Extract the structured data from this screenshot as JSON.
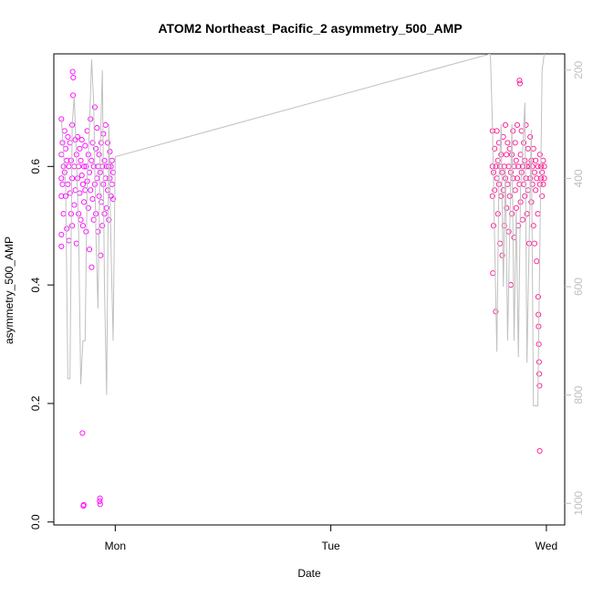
{
  "chart_data": {
    "type": "scatter",
    "title": "ATOM2 Northeast_Pacific_2 asymmetry_500_AMP",
    "xlabel": "Date",
    "ylabel": "asymmetry_500_AMP",
    "x_tick_labels": [
      "Mon",
      "Tue",
      "Wed"
    ],
    "x_tick_positions_days": [
      0,
      1,
      2
    ],
    "xlim_days": [
      -0.285,
      2.085
    ],
    "ylim": [
      -0.005,
      0.79
    ],
    "y_ticks": [
      0.0,
      0.2,
      0.4,
      0.6
    ],
    "y_tick_labels": [
      "0.0",
      "0.2",
      "0.4",
      "0.6"
    ],
    "y2_label": "",
    "y2_ticks": [
      200,
      400,
      600,
      800,
      1000
    ],
    "y2_tick_labels": [
      "200",
      "400",
      "600",
      "800",
      "1000"
    ],
    "y2lim_reversed": [
      1040,
      170
    ],
    "grid": false,
    "legend": "none",
    "series": [
      {
        "kind": "points",
        "color": "#ff00ff",
        "points": [
          [
            -0.25,
            0.58
          ],
          [
            -0.25,
            0.62
          ],
          [
            -0.25,
            0.55
          ],
          [
            -0.25,
            0.68
          ],
          [
            -0.25,
            0.465
          ],
          [
            -0.25,
            0.485
          ],
          [
            -0.245,
            0.64
          ],
          [
            -0.245,
            0.57
          ],
          [
            -0.24,
            0.6
          ],
          [
            -0.24,
            0.52
          ],
          [
            -0.235,
            0.66
          ],
          [
            -0.235,
            0.59
          ],
          [
            -0.23,
            0.63
          ],
          [
            -0.23,
            0.55
          ],
          [
            -0.225,
            0.61
          ],
          [
            -0.225,
            0.495
          ],
          [
            -0.22,
            0.57
          ],
          [
            -0.22,
            0.65
          ],
          [
            -0.215,
            0.6
          ],
          [
            -0.215,
            0.475
          ],
          [
            -0.21,
            0.555
          ],
          [
            -0.21,
            0.64
          ],
          [
            -0.205,
            0.52
          ],
          [
            -0.205,
            0.61
          ],
          [
            -0.2,
            0.67
          ],
          [
            -0.2,
            0.58
          ],
          [
            -0.2,
            0.5
          ],
          [
            -0.198,
            0.76
          ],
          [
            -0.196,
            0.72
          ],
          [
            -0.195,
            0.75
          ],
          [
            -0.19,
            0.6
          ],
          [
            -0.19,
            0.535
          ],
          [
            -0.185,
            0.645
          ],
          [
            -0.185,
            0.56
          ],
          [
            -0.18,
            0.62
          ],
          [
            -0.18,
            0.47
          ],
          [
            -0.175,
            0.58
          ],
          [
            -0.175,
            0.65
          ],
          [
            -0.17,
            0.6
          ],
          [
            -0.17,
            0.52
          ],
          [
            -0.165,
            0.555
          ],
          [
            -0.165,
            0.63
          ],
          [
            -0.16,
            0.61
          ],
          [
            -0.16,
            0.51
          ],
          [
            -0.155,
            0.585
          ],
          [
            -0.155,
            0.645
          ],
          [
            -0.152,
            0.15
          ],
          [
            -0.15,
            0.57
          ],
          [
            -0.15,
            0.5
          ],
          [
            -0.148,
            0.027
          ],
          [
            -0.146,
            0.029
          ],
          [
            -0.145,
            0.6
          ],
          [
            -0.145,
            0.54
          ],
          [
            -0.14,
            0.635
          ],
          [
            -0.14,
            0.56
          ],
          [
            -0.135,
            0.6
          ],
          [
            -0.135,
            0.49
          ],
          [
            -0.13,
            0.66
          ],
          [
            -0.13,
            0.575
          ],
          [
            -0.125,
            0.62
          ],
          [
            -0.125,
            0.53
          ],
          [
            -0.12,
            0.59
          ],
          [
            -0.12,
            0.46
          ],
          [
            -0.115,
            0.68
          ],
          [
            -0.115,
            0.56
          ],
          [
            -0.11,
            0.61
          ],
          [
            -0.11,
            0.43
          ],
          [
            -0.105,
            0.545
          ],
          [
            -0.105,
            0.64
          ],
          [
            -0.1,
            0.6
          ],
          [
            -0.1,
            0.51
          ],
          [
            -0.095,
            0.7
          ],
          [
            -0.095,
            0.57
          ],
          [
            -0.09,
            0.63
          ],
          [
            -0.09,
            0.52
          ],
          [
            -0.085,
            0.58
          ],
          [
            -0.085,
            0.665
          ],
          [
            -0.08,
            0.6
          ],
          [
            -0.08,
            0.49
          ],
          [
            -0.075,
            0.55
          ],
          [
            -0.075,
            0.62
          ],
          [
            -0.072,
            0.035
          ],
          [
            -0.071,
            0.04
          ],
          [
            -0.07,
            0.03
          ],
          [
            -0.07,
            0.59
          ],
          [
            -0.068,
            0.45
          ],
          [
            -0.065,
            0.64
          ],
          [
            -0.065,
            0.54
          ],
          [
            -0.06,
            0.6
          ],
          [
            -0.06,
            0.5
          ],
          [
            -0.055,
            0.57
          ],
          [
            -0.055,
            0.655
          ],
          [
            -0.05,
            0.61
          ],
          [
            -0.05,
            0.52
          ],
          [
            -0.045,
            0.58
          ],
          [
            -0.045,
            0.67
          ],
          [
            -0.04,
            0.6
          ],
          [
            -0.04,
            0.53
          ],
          [
            -0.035,
            0.56
          ],
          [
            -0.035,
            0.64
          ],
          [
            -0.03,
            0.6
          ],
          [
            -0.03,
            0.51
          ],
          [
            -0.025,
            0.58
          ],
          [
            -0.025,
            0.625
          ],
          [
            -0.02,
            0.55
          ],
          [
            -0.02,
            0.6
          ],
          [
            -0.015,
            0.57
          ],
          [
            -0.015,
            0.61
          ],
          [
            -0.01,
            0.59
          ],
          [
            -0.01,
            0.545
          ]
        ]
      },
      {
        "kind": "points",
        "color": "#ff1493",
        "points": [
          [
            1.75,
            0.6
          ],
          [
            1.75,
            0.55
          ],
          [
            1.75,
            0.66
          ],
          [
            1.752,
            0.42
          ],
          [
            1.755,
            0.59
          ],
          [
            1.755,
            0.5
          ],
          [
            1.76,
            0.63
          ],
          [
            1.76,
            0.56
          ],
          [
            1.765,
            0.6
          ],
          [
            1.765,
            0.355
          ],
          [
            1.77,
            0.58
          ],
          [
            1.77,
            0.66
          ],
          [
            1.775,
            0.61
          ],
          [
            1.775,
            0.52
          ],
          [
            1.78,
            0.57
          ],
          [
            1.78,
            0.64
          ],
          [
            1.785,
            0.6
          ],
          [
            1.785,
            0.47
          ],
          [
            1.79,
            0.55
          ],
          [
            1.79,
            0.62
          ],
          [
            1.795,
            0.59
          ],
          [
            1.795,
            0.45
          ],
          [
            1.8,
            0.65
          ],
          [
            1.8,
            0.56
          ],
          [
            1.805,
            0.6
          ],
          [
            1.805,
            0.5
          ],
          [
            1.81,
            0.58
          ],
          [
            1.81,
            0.67
          ],
          [
            1.815,
            0.62
          ],
          [
            1.815,
            0.53
          ],
          [
            1.82,
            0.57
          ],
          [
            1.82,
            0.64
          ],
          [
            1.825,
            0.6
          ],
          [
            1.825,
            0.49
          ],
          [
            1.83,
            0.55
          ],
          [
            1.83,
            0.63
          ],
          [
            1.835,
            0.59
          ],
          [
            1.835,
            0.4
          ],
          [
            1.84,
            0.62
          ],
          [
            1.84,
            0.52
          ],
          [
            1.845,
            0.58
          ],
          [
            1.845,
            0.66
          ],
          [
            1.85,
            0.6
          ],
          [
            1.85,
            0.48
          ],
          [
            1.855,
            0.56
          ],
          [
            1.855,
            0.64
          ],
          [
            1.86,
            0.61
          ],
          [
            1.86,
            0.53
          ],
          [
            1.865,
            0.58
          ],
          [
            1.865,
            0.67
          ],
          [
            1.87,
            0.6
          ],
          [
            1.87,
            0.5
          ],
          [
            1.875,
            0.57
          ],
          [
            1.875,
            0.745
          ],
          [
            1.877,
            0.74
          ],
          [
            1.88,
            0.62
          ],
          [
            1.88,
            0.54
          ],
          [
            1.885,
            0.59
          ],
          [
            1.885,
            0.66
          ],
          [
            1.89,
            0.6
          ],
          [
            1.89,
            0.51
          ],
          [
            1.895,
            0.57
          ],
          [
            1.895,
            0.64
          ],
          [
            1.9,
            0.61
          ],
          [
            1.9,
            0.55
          ],
          [
            1.905,
            0.58
          ],
          [
            1.905,
            0.67
          ],
          [
            1.91,
            0.6
          ],
          [
            1.91,
            0.52
          ],
          [
            1.915,
            0.56
          ],
          [
            1.915,
            0.63
          ],
          [
            1.92,
            0.6
          ],
          [
            1.92,
            0.47
          ],
          [
            1.925,
            0.58
          ],
          [
            1.925,
            0.65
          ],
          [
            1.93,
            0.61
          ],
          [
            1.93,
            0.54
          ],
          [
            1.935,
            0.57
          ],
          [
            1.935,
            0.6
          ],
          [
            1.94,
            0.63
          ],
          [
            1.94,
            0.5
          ],
          [
            1.945,
            0.59
          ],
          [
            1.945,
            0.47
          ],
          [
            1.95,
            0.56
          ],
          [
            1.95,
            0.61
          ],
          [
            1.955,
            0.58
          ],
          [
            1.955,
            0.44
          ],
          [
            1.96,
            0.6
          ],
          [
            1.96,
            0.52
          ],
          [
            1.962,
            0.38
          ],
          [
            1.963,
            0.35
          ],
          [
            1.964,
            0.33
          ],
          [
            1.965,
            0.3
          ],
          [
            1.966,
            0.27
          ],
          [
            1.967,
            0.25
          ],
          [
            1.968,
            0.23
          ],
          [
            1.969,
            0.12
          ],
          [
            1.97,
            0.57
          ],
          [
            1.97,
            0.62
          ],
          [
            1.975,
            0.58
          ],
          [
            1.975,
            0.6
          ],
          [
            1.98,
            0.59
          ],
          [
            1.98,
            0.55
          ],
          [
            1.985,
            0.61
          ],
          [
            1.985,
            0.57
          ],
          [
            1.99,
            0.6
          ],
          [
            1.99,
            0.58
          ]
        ]
      },
      {
        "kind": "line",
        "color": "#c0c0c0",
        "axis": "right",
        "points": [
          [
            -0.25,
            290
          ],
          [
            -0.24,
            350
          ],
          [
            -0.23,
            420
          ],
          [
            -0.22,
            770
          ],
          [
            -0.21,
            770
          ],
          [
            -0.2,
            300
          ],
          [
            -0.19,
            250
          ],
          [
            -0.18,
            360
          ],
          [
            -0.17,
            500
          ],
          [
            -0.16,
            780
          ],
          [
            -0.15,
            700
          ],
          [
            -0.14,
            700
          ],
          [
            -0.13,
            400
          ],
          [
            -0.12,
            310
          ],
          [
            -0.11,
            180
          ],
          [
            -0.1,
            260
          ],
          [
            -0.09,
            500
          ],
          [
            -0.08,
            640
          ],
          [
            -0.07,
            350
          ],
          [
            -0.06,
            200
          ],
          [
            -0.05,
            600
          ],
          [
            -0.04,
            800
          ],
          [
            -0.03,
            300
          ],
          [
            -0.02,
            520
          ],
          [
            -0.01,
            700
          ],
          [
            0.0,
            360
          ],
          [
            1.74,
            170
          ],
          [
            1.75,
            300
          ],
          [
            1.76,
            520
          ],
          [
            1.77,
            720
          ],
          [
            1.78,
            400
          ],
          [
            1.79,
            300
          ],
          [
            1.8,
            600
          ],
          [
            1.81,
            380
          ],
          [
            1.82,
            700
          ],
          [
            1.83,
            500
          ],
          [
            1.84,
            300
          ],
          [
            1.85,
            700
          ],
          [
            1.86,
            460
          ],
          [
            1.87,
            730
          ],
          [
            1.88,
            420
          ],
          [
            1.89,
            350
          ],
          [
            1.9,
            260
          ],
          [
            1.91,
            740
          ],
          [
            1.92,
            520
          ],
          [
            1.93,
            310
          ],
          [
            1.94,
            820
          ],
          [
            1.95,
            820
          ],
          [
            1.96,
            820
          ],
          [
            1.97,
            520
          ],
          [
            1.98,
            200
          ],
          [
            1.99,
            170
          ]
        ]
      }
    ]
  }
}
